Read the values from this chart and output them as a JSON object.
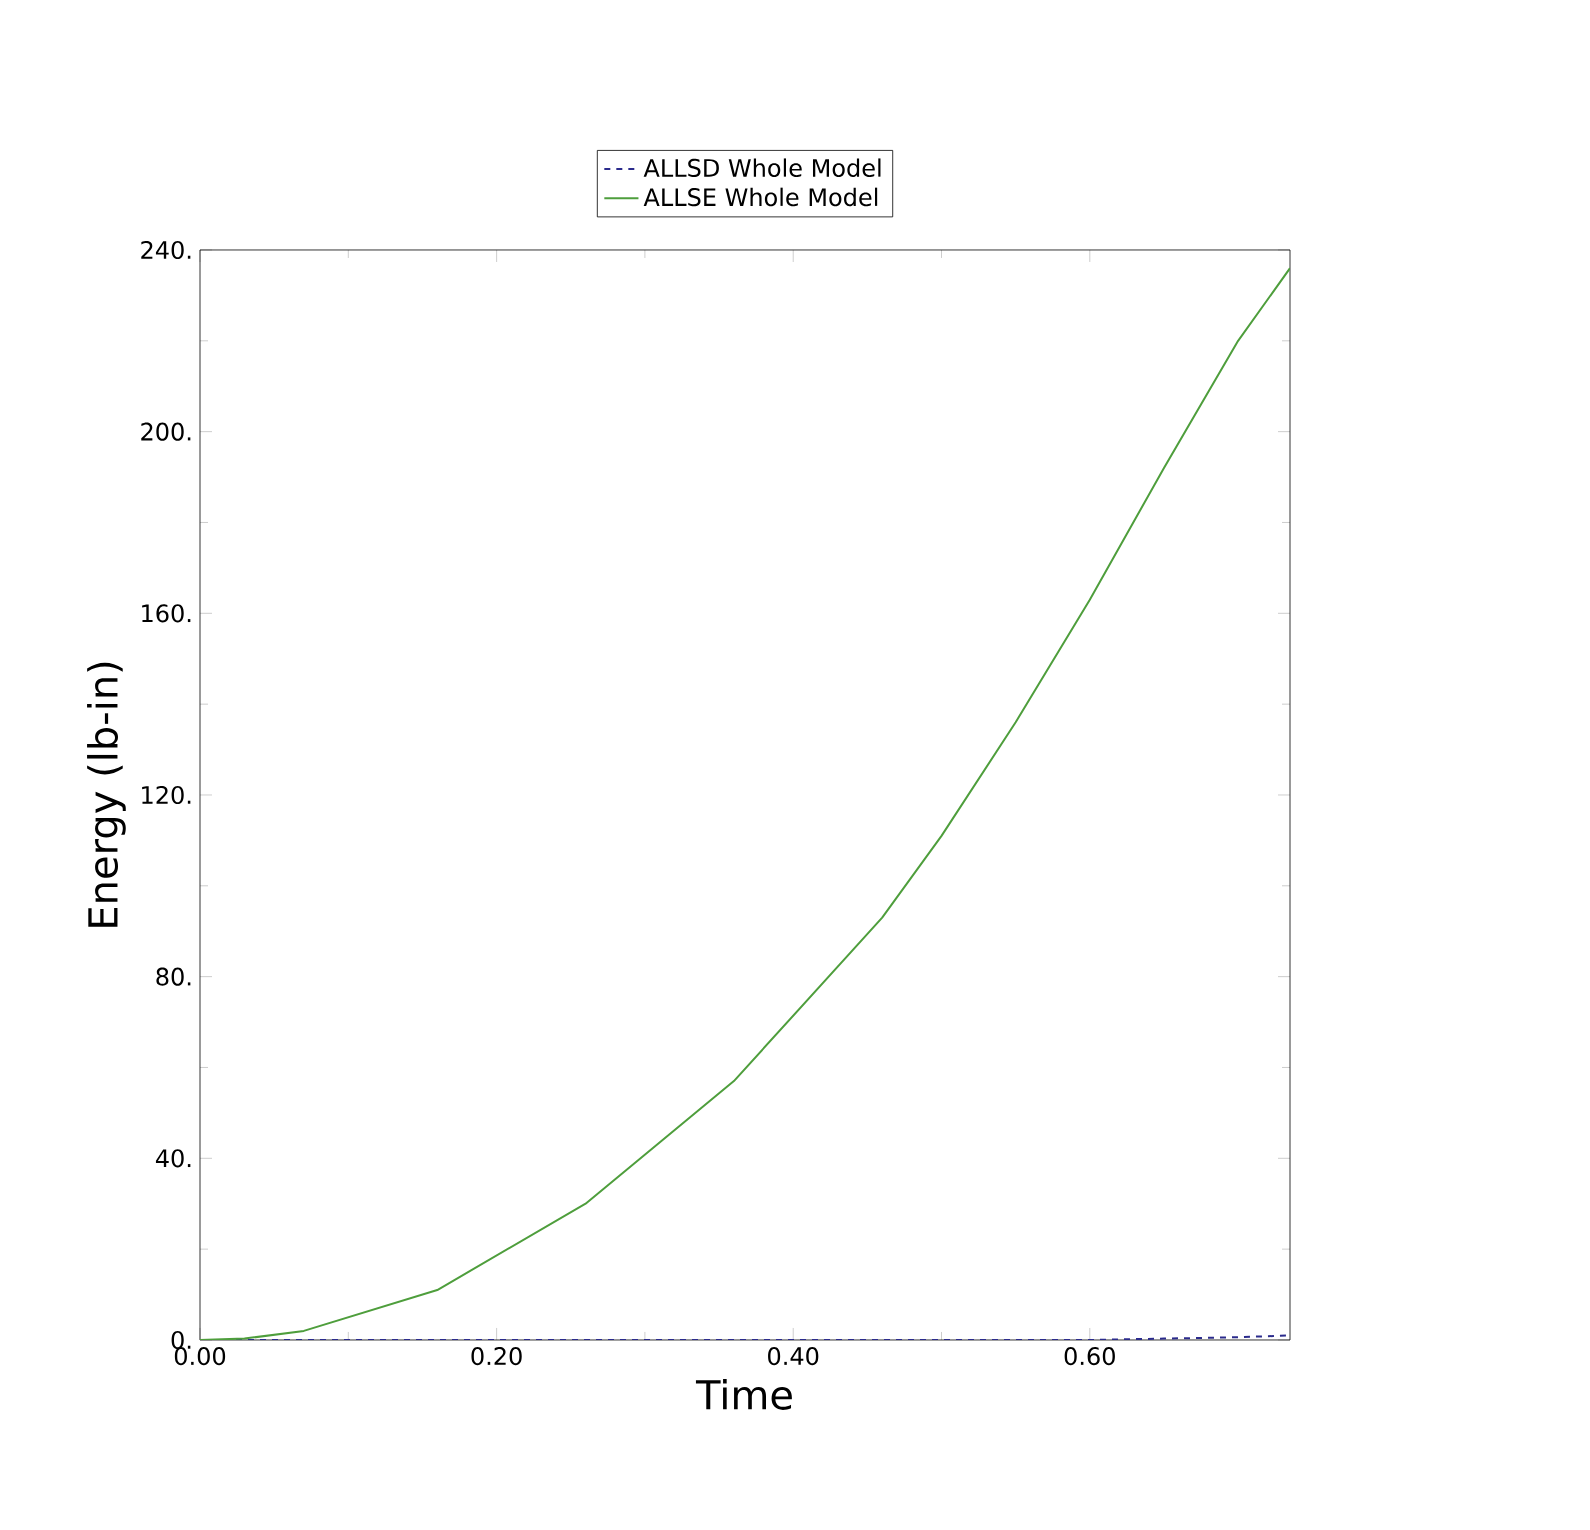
{
  "chart_data": {
    "type": "line",
    "xlabel": "Time",
    "ylabel": "Energy (lb-in)",
    "xlim": [
      0,
      0.735
    ],
    "ylim": [
      0,
      240
    ],
    "xticks": [
      {
        "value": 0,
        "label": "0.00"
      },
      {
        "value": 0.2,
        "label": "0.20"
      },
      {
        "value": 0.4,
        "label": "0.40"
      },
      {
        "value": 0.6,
        "label": "0.60"
      }
    ],
    "yticks": [
      {
        "value": 0,
        "label": "0."
      },
      {
        "value": 40,
        "label": "40."
      },
      {
        "value": 80,
        "label": "80."
      },
      {
        "value": 120,
        "label": "120."
      },
      {
        "value": 160,
        "label": "160."
      },
      {
        "value": 200,
        "label": "200."
      },
      {
        "value": 240,
        "label": "240."
      }
    ],
    "legend": "top",
    "grid": false,
    "series": [
      {
        "name": "ALLSD Whole Model",
        "color": "#2b2b8c",
        "line_style": "dashed",
        "x": [
          0,
          0.1,
          0.2,
          0.3,
          0.4,
          0.5,
          0.6,
          0.65,
          0.7,
          0.735
        ],
        "values": [
          0,
          0,
          0,
          0,
          0,
          0,
          0,
          0.3,
          0.6,
          1
        ]
      },
      {
        "name": "ALLSE Whole Model",
        "color": "#4e9e3c",
        "line_style": "solid",
        "x": [
          0,
          0.03,
          0.07,
          0.16,
          0.26,
          0.36,
          0.46,
          0.5,
          0.55,
          0.6,
          0.65,
          0.7,
          0.735
        ],
        "values": [
          0,
          0.3,
          2,
          11,
          30,
          57,
          93,
          111,
          136,
          163,
          192,
          220,
          236
        ]
      }
    ]
  }
}
